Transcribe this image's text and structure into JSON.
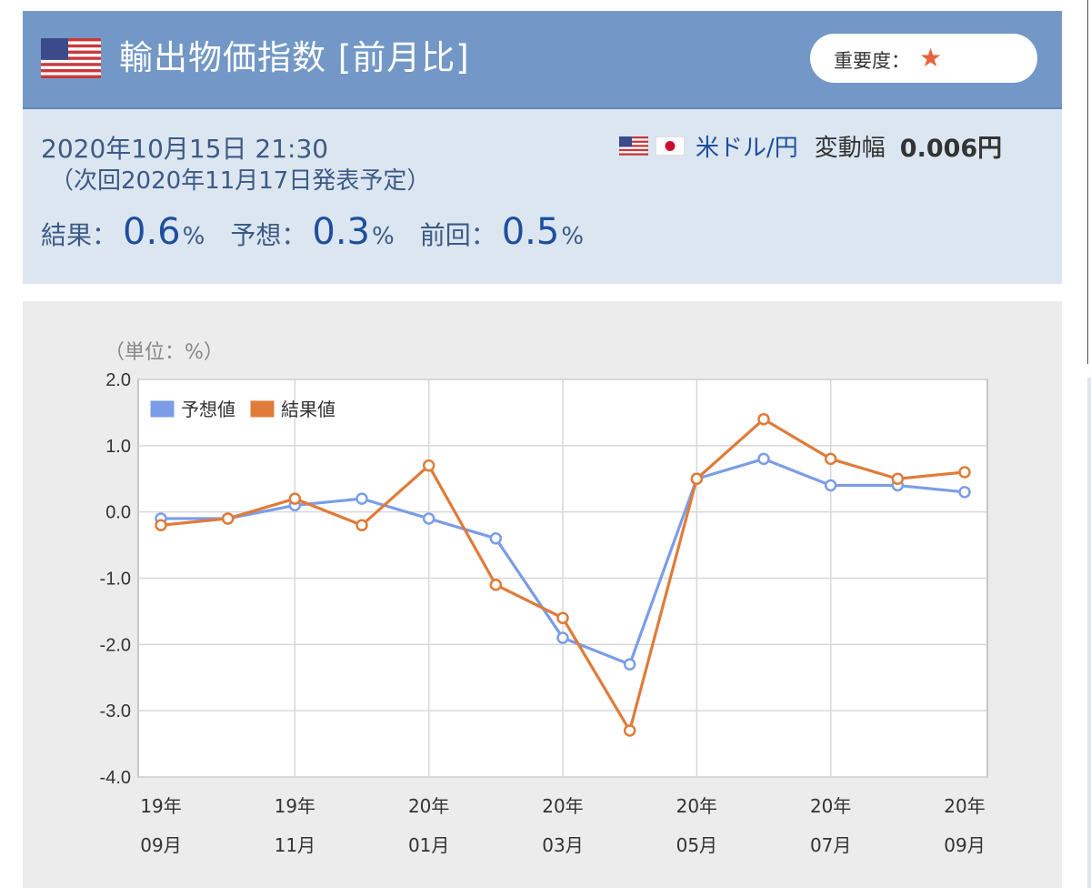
{
  "header": {
    "title": "輸出物価指数 [前月比]",
    "importance_label": "重要度：",
    "importance_star": "★"
  },
  "info": {
    "datetime": "2020年10月15日 21:30",
    "next_release": "（次回2020年11月17日発表予定）",
    "result_label": "結果：",
    "result_value": "0.6",
    "forecast_label": "予想：",
    "forecast_value": "0.3",
    "previous_label": "前回：",
    "previous_value": "0.5",
    "unit": "%",
    "pair_name": "米ドル/円",
    "range_label": "変動幅",
    "range_value": "0.006円"
  },
  "colors": {
    "header_bg": "#7398c7",
    "info_bg": "#dbe6f1",
    "forecast_line": "#7b9de8",
    "result_line": "#e07b39"
  },
  "chart_data": {
    "type": "line",
    "unit_label": "（単位：%）",
    "ylim": [
      -4.0,
      2.0
    ],
    "yticks": [
      "2.0",
      "1.0",
      "0.0",
      "-1.0",
      "-2.0",
      "-3.0",
      "-4.0"
    ],
    "ytick_values": [
      2,
      1,
      0,
      -1,
      -2,
      -3,
      -4
    ],
    "categories": [
      "19/09",
      "19/10",
      "19/11",
      "19/12",
      "20/01",
      "20/02",
      "20/03",
      "20/04",
      "20/05",
      "20/06",
      "20/07",
      "20/08",
      "20/09"
    ],
    "xtick_labels": [
      {
        "index": 0,
        "year": "19年",
        "month": "09月"
      },
      {
        "index": 2,
        "year": "19年",
        "month": "11月"
      },
      {
        "index": 4,
        "year": "20年",
        "month": "01月"
      },
      {
        "index": 6,
        "year": "20年",
        "month": "03月"
      },
      {
        "index": 8,
        "year": "20年",
        "month": "05月"
      },
      {
        "index": 10,
        "year": "20年",
        "month": "07月"
      },
      {
        "index": 12,
        "year": "20年",
        "month": "09月"
      }
    ],
    "series": [
      {
        "name": "予想値",
        "color": "#7b9de8",
        "values": [
          -0.1,
          -0.1,
          0.1,
          0.2,
          -0.1,
          -0.4,
          -1.9,
          -2.3,
          0.5,
          0.8,
          0.4,
          0.4,
          0.3
        ]
      },
      {
        "name": "結果値",
        "color": "#e07b39",
        "values": [
          -0.2,
          -0.1,
          0.2,
          -0.2,
          0.7,
          -1.1,
          -1.6,
          -3.3,
          0.5,
          1.4,
          0.8,
          0.5,
          0.6
        ]
      }
    ],
    "grid": true,
    "legend_position": "top-left"
  }
}
